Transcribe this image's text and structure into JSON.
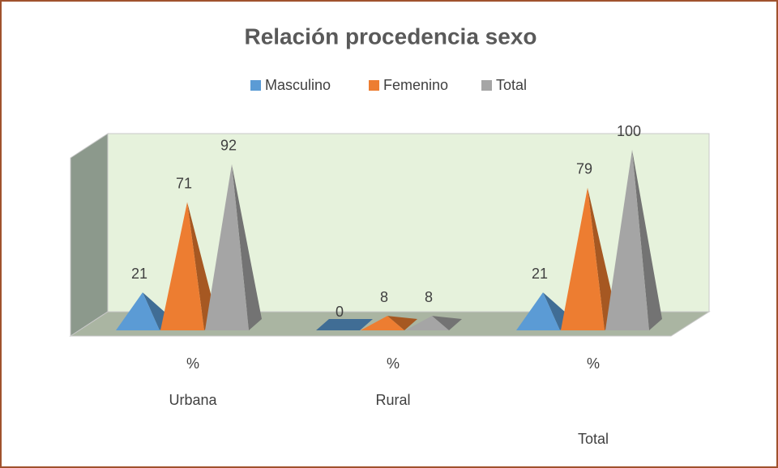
{
  "chart_data": {
    "type": "pyramid3d",
    "title": "Relación procedencia sexo",
    "categories": [
      "%",
      "%",
      "%"
    ],
    "groups": [
      "Urbana",
      "Rural",
      "Total"
    ],
    "series": [
      {
        "name": "Masculino",
        "color": "#5b9bd5",
        "values": [
          21,
          0,
          21
        ]
      },
      {
        "name": "Femenino",
        "color": "#ed7d31",
        "values": [
          71,
          8,
          79
        ]
      },
      {
        "name": "Total",
        "color": "#a5a5a5",
        "values": [
          92,
          8,
          100
        ]
      }
    ],
    "legend": "top"
  }
}
